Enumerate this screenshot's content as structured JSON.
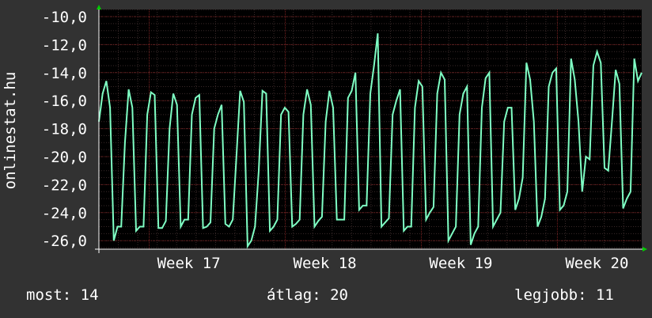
{
  "chart_data": {
    "type": "line",
    "ylabel": "onlinestat.hu",
    "xlabel": "",
    "title": "",
    "y_ticks": [
      "-10,0",
      "-12,0",
      "-14,0",
      "-16,0",
      "-18,0",
      "-20,0",
      "-22,0",
      "-24,0",
      "-26,0"
    ],
    "ylim": [
      -26.5,
      -9.5
    ],
    "x_ticks": [
      "Week 17",
      "Week 18",
      "Week 19",
      "Week 20"
    ],
    "x_tick_positions": [
      1.0,
      2.0,
      3.0,
      4.0
    ],
    "xlim": [
      0.63,
      4.62
    ],
    "grid": true,
    "line_color": "#7fffc4",
    "background": "#000000",
    "series": [
      {
        "values": [
          -17.5,
          -15.5,
          -14.6,
          -16.5,
          -26.0,
          -25.0,
          -25.0,
          -19.0,
          -15.2,
          -16.5,
          -25.3,
          -25.0,
          -25.0,
          -17.0,
          -15.4,
          -15.6,
          -25.1,
          -25.1,
          -24.6,
          -18.0,
          -15.5,
          -16.3,
          -25.0,
          -24.5,
          -24.5,
          -17.0,
          -15.8,
          -15.6,
          -25.1,
          -25.0,
          -24.7,
          -18.0,
          -17.0,
          -16.3,
          -24.8,
          -25.0,
          -24.5,
          -20.0,
          -15.3,
          -16.1,
          -26.4,
          -26.0,
          -25.0,
          -21.0,
          -15.3,
          -15.5,
          -25.3,
          -25.0,
          -24.5,
          -17.0,
          -16.5,
          -16.8,
          -25.0,
          -24.8,
          -24.5,
          -17.0,
          -15.2,
          -16.3,
          -25.0,
          -24.6,
          -24.3,
          -17.5,
          -15.3,
          -16.5,
          -24.5,
          -24.5,
          -24.5,
          -15.8,
          -15.3,
          -14.0,
          -23.8,
          -23.5,
          -23.5,
          -15.5,
          -13.5,
          -11.2,
          -25.0,
          -24.7,
          -24.4,
          -17.0,
          -16.0,
          -15.2,
          -25.3,
          -25.0,
          -25.0,
          -16.5,
          -14.6,
          -15.0,
          -24.5,
          -24.0,
          -23.6,
          -15.5,
          -14.0,
          -14.5,
          -26.0,
          -25.5,
          -25.0,
          -17.0,
          -15.5,
          -15.0,
          -26.3,
          -25.5,
          -25.0,
          -16.5,
          -14.4,
          -14.0,
          -25.0,
          -24.5,
          -24.0,
          -17.5,
          -16.5,
          -16.5,
          -23.8,
          -23.0,
          -21.5,
          -13.3,
          -14.5,
          -17.5,
          -25.0,
          -24.3,
          -23.0,
          -15.0,
          -14.0,
          -13.7,
          -23.8,
          -23.5,
          -22.5,
          -13.0,
          -14.5,
          -17.5,
          -22.5,
          -20.0,
          -20.2,
          -13.5,
          -12.5,
          -13.3,
          -20.8,
          -21.0,
          -17.5,
          -13.8,
          -14.8,
          -23.7,
          -23.0,
          -22.5,
          -13.0,
          -14.6,
          -14.0
        ],
        "x_start": 0.63,
        "x_end": 4.62
      }
    ]
  },
  "footer": {
    "current_label": "most: 14",
    "average_label": "átlag: 20",
    "best_label": "legjobb: 11"
  }
}
